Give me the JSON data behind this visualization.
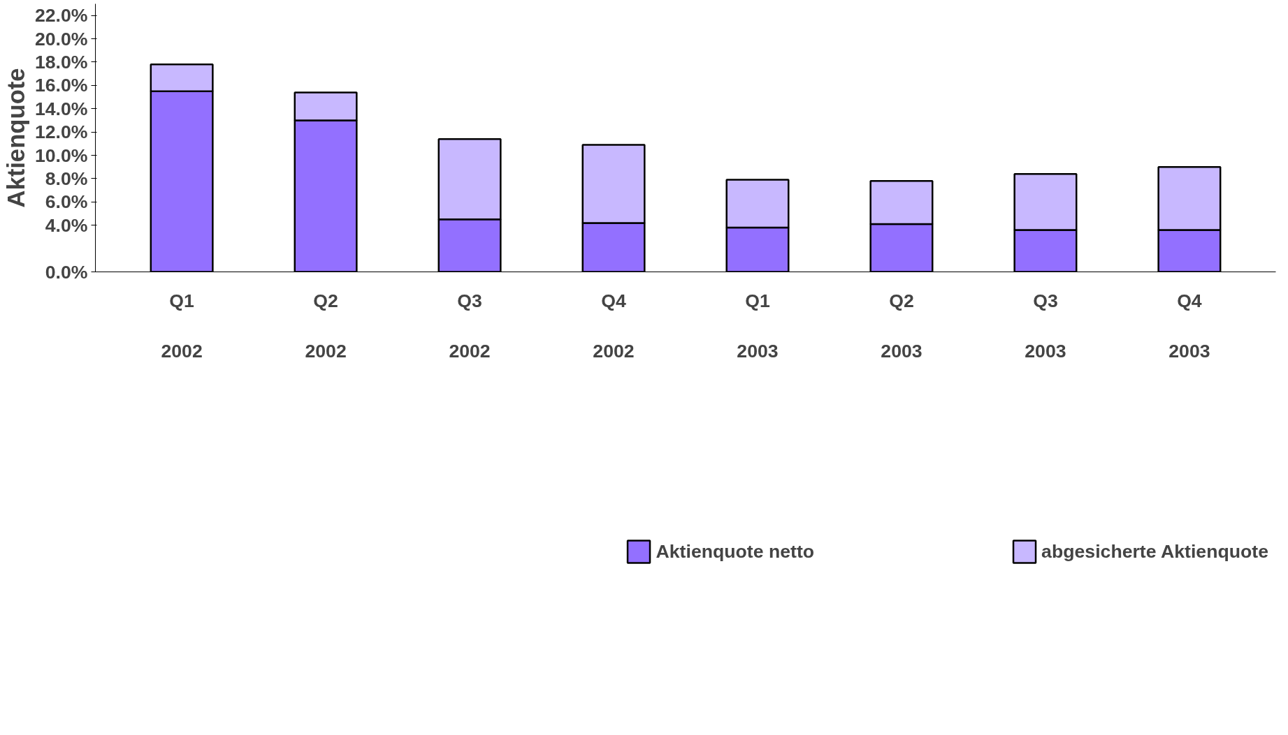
{
  "chart_data": {
    "type": "bar",
    "stacked": true,
    "ylabel": "Aktienquote",
    "categories": [
      "Q1\n\n2002",
      "Q2\n\n2002",
      "Q3\n\n2002",
      "Q4\n\n2002",
      "Q1\n\n2003",
      "Q2\n\n2003",
      "Q3\n\n2003",
      "Q4\n\n2003"
    ],
    "series": [
      {
        "name": "Aktienquote netto",
        "color": "#9370ff",
        "values": [
          15.5,
          13.0,
          4.5,
          4.2,
          3.8,
          4.1,
          3.6,
          3.6
        ]
      },
      {
        "name": "abgesicherte Aktienquote",
        "color": "#c8b8ff",
        "values": [
          2.3,
          2.4,
          6.9,
          6.7,
          4.1,
          3.7,
          4.8,
          5.4
        ]
      }
    ],
    "ylim": [
      0,
      23
    ],
    "yticks": [
      {
        "value": 0,
        "label": "0.0%"
      },
      {
        "value": 4,
        "label": "4.0%"
      },
      {
        "value": 6,
        "label": "6.0%"
      },
      {
        "value": 8,
        "label": "8.0%"
      },
      {
        "value": 10,
        "label": "10.0%"
      },
      {
        "value": 12,
        "label": "12.0%"
      },
      {
        "value": 14,
        "label": "14.0%"
      },
      {
        "value": 16,
        "label": "16.0%"
      },
      {
        "value": 18,
        "label": "18.0%"
      },
      {
        "value": 20,
        "label": "20.0%"
      },
      {
        "value": 22,
        "label": "22.0%"
      }
    ],
    "grid": false,
    "legend": "bottom"
  }
}
